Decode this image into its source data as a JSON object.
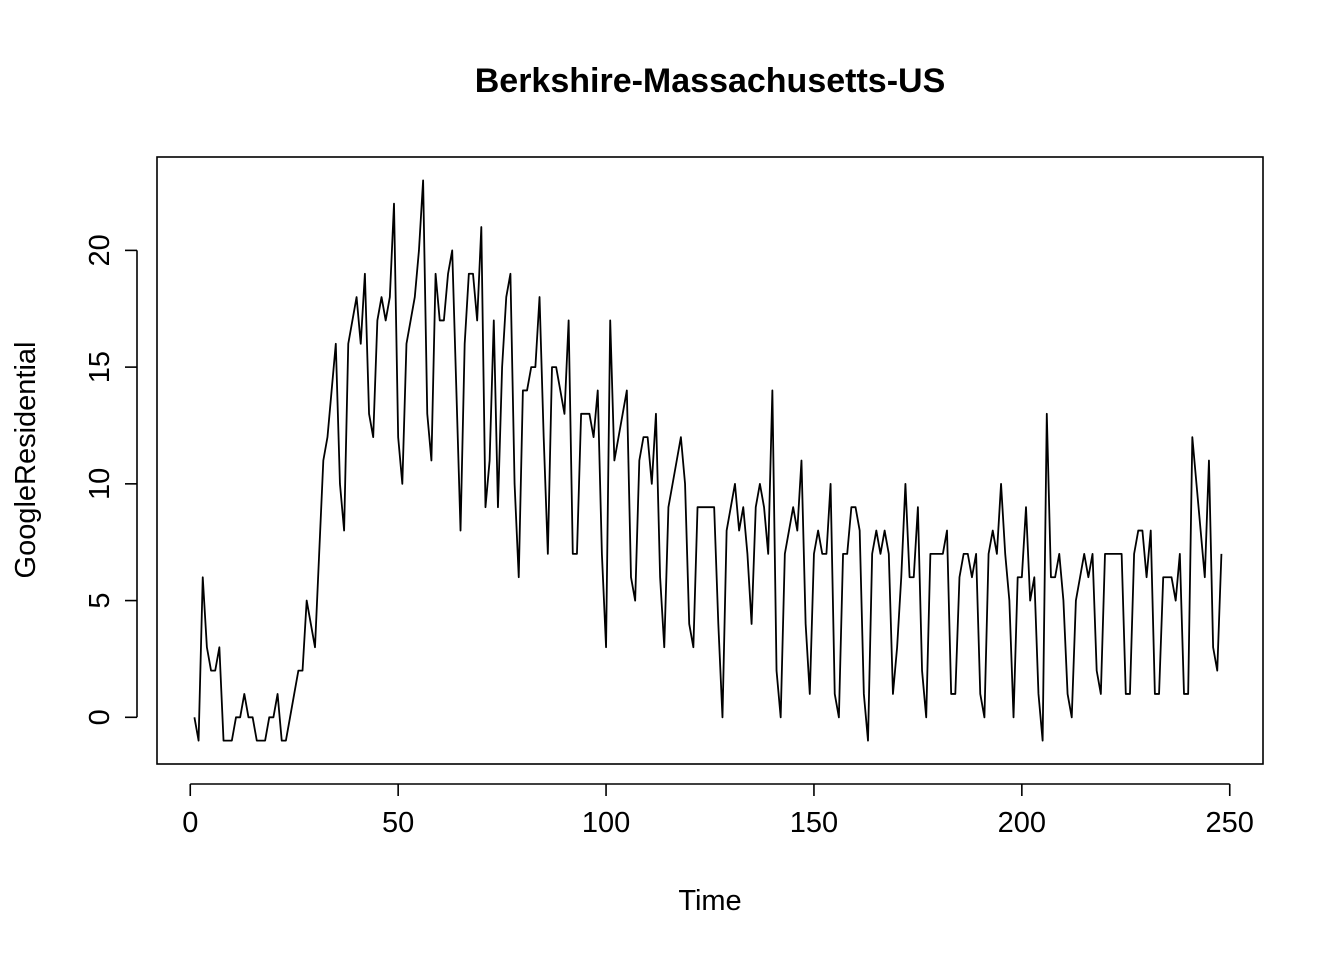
{
  "chart_data": {
    "type": "line",
    "title": "Berkshire-Massachusetts-US",
    "xlabel": "Time",
    "ylabel": "GoogleResidential",
    "xlim": [
      -8,
      258
    ],
    "ylim": [
      -2,
      24
    ],
    "x_ticks": [
      0,
      50,
      100,
      150,
      200,
      250
    ],
    "y_ticks": [
      0,
      5,
      10,
      15,
      20
    ],
    "x_tick_labels": [
      "0",
      "50",
      "100",
      "150",
      "200",
      "250"
    ],
    "y_tick_labels": [
      "0",
      "5",
      "10",
      "15",
      "20"
    ],
    "grid": false,
    "legend": "none",
    "line_color": "#000000",
    "series": [
      {
        "x_start": 1,
        "values": [
          0,
          -1,
          6,
          3,
          2,
          2,
          3,
          -1,
          -1,
          -1,
          0,
          0,
          1,
          0,
          0,
          -1,
          -1,
          -1,
          0,
          0,
          1,
          -1,
          -1,
          0,
          1,
          2,
          2,
          5,
          4,
          3,
          7,
          11,
          12,
          14,
          16,
          10,
          8,
          16,
          17,
          18,
          16,
          19,
          13,
          12,
          17,
          18,
          17,
          18,
          22,
          12,
          10,
          16,
          17,
          18,
          20,
          23,
          13,
          11,
          19,
          17,
          17,
          19,
          20,
          14,
          8,
          16,
          19,
          19,
          17,
          21,
          9,
          11,
          17,
          9,
          15,
          18,
          19,
          10,
          6,
          14,
          14,
          15,
          15,
          18,
          12,
          7,
          15,
          15,
          14,
          13,
          17,
          7,
          7,
          13,
          13,
          13,
          12,
          14,
          7,
          3,
          17,
          11,
          12,
          13,
          14,
          6,
          5,
          11,
          12,
          12,
          10,
          13,
          6,
          3,
          9,
          10,
          11,
          12,
          10,
          4,
          3,
          9,
          9,
          9,
          9,
          9,
          4,
          0,
          8,
          9,
          10,
          8,
          9,
          7,
          4,
          9,
          10,
          9,
          7,
          14,
          2,
          0,
          7,
          8,
          9,
          8,
          11,
          4,
          1,
          7,
          8,
          7,
          7,
          10,
          1,
          0,
          7,
          7,
          9,
          9,
          8,
          1,
          -1,
          7,
          8,
          7,
          8,
          7,
          1,
          3,
          6,
          10,
          6,
          6,
          9,
          2,
          0,
          7,
          7,
          7,
          7,
          8,
          1,
          1,
          6,
          7,
          7,
          6,
          7,
          1,
          0,
          7,
          8,
          7,
          10,
          7,
          5,
          0,
          6,
          6,
          9,
          5,
          6,
          1,
          -1,
          13,
          6,
          6,
          7,
          5,
          1,
          0,
          5,
          6,
          7,
          6,
          7,
          2,
          1,
          7,
          7,
          7,
          7,
          7,
          1,
          1,
          7,
          8,
          8,
          6,
          8,
          1,
          1,
          6,
          6,
          6,
          5,
          7,
          1,
          1,
          12,
          10,
          8,
          6,
          11,
          3,
          2,
          7
        ]
      }
    ]
  }
}
